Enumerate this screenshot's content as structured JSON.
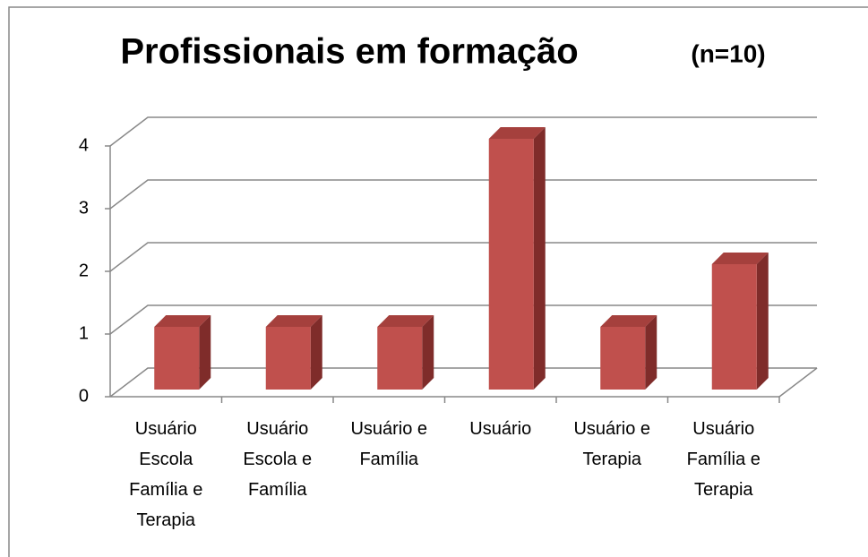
{
  "chart_data": {
    "type": "bar3d",
    "title": "Profissionais em formação",
    "subtitle": "(n=10)",
    "categories": [
      "Usuário Escola Família e Terapia",
      "Usuário Escola e Família",
      "Usuário e Família",
      "Usuário",
      "Usuário e Terapia",
      "Usuário Família e Terapia"
    ],
    "values": [
      1,
      1,
      1,
      4,
      1,
      2
    ],
    "color": "#c0504d",
    "ylim": [
      0,
      4
    ],
    "yticks": [
      0,
      1,
      2,
      3,
      4
    ],
    "grid": true
  }
}
